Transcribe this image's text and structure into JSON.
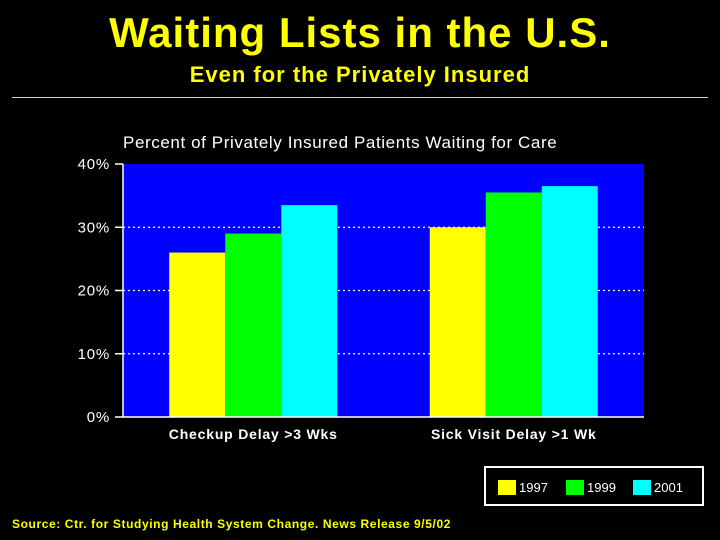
{
  "slide": {
    "title": "Waiting Lists in the U.S.",
    "subtitle": "Even for the Privately Insured",
    "source": "Source:  Ctr. for Studying Health System Change.  News Release 9/5/02"
  },
  "colors": {
    "background": "#000000",
    "plot_area": "#0000ff",
    "title_text": "#ffff00",
    "gridline": "#ffffff"
  },
  "chart_data": {
    "type": "bar",
    "title": "Percent of Privately Insured Patients Waiting for Care",
    "xlabel": "",
    "ylabel": "",
    "categories": [
      "Checkup Delay >3 Wks",
      "Sick Visit Delay >1 Wk"
    ],
    "series": [
      {
        "name": "1997",
        "color": "#ffff00",
        "values": [
          26,
          30
        ]
      },
      {
        "name": "1999",
        "color": "#00ff00",
        "values": [
          29,
          35.5
        ]
      },
      {
        "name": "2001",
        "color": "#00ffff",
        "values": [
          33.5,
          36.5
        ]
      }
    ],
    "ylim": [
      0,
      40
    ],
    "yticks": [
      0,
      10,
      20,
      30,
      40
    ],
    "ytick_labels": [
      "0%",
      "10%",
      "20%",
      "30%",
      "40%"
    ],
    "grid": true,
    "grid_style": "dotted",
    "legend_position": "bottom-right"
  }
}
